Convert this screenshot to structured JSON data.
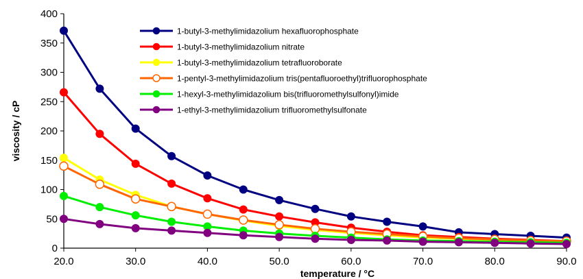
{
  "chart_data": {
    "type": "line",
    "xlabel": "temperature / °C",
    "ylabel": "viscosity / cP",
    "xlim": [
      20,
      90
    ],
    "ylim": [
      0,
      400
    ],
    "x_ticks": [
      "20.0",
      "30.0",
      "40.0",
      "50.0",
      "60.0",
      "70.0",
      "80.0",
      "90.0"
    ],
    "y_ticks": [
      "0",
      "50",
      "100",
      "150",
      "200",
      "250",
      "300",
      "350",
      "400"
    ],
    "grid": false,
    "legend_position": "top-right",
    "x": [
      20,
      25,
      30,
      35,
      40,
      45,
      50,
      55,
      60,
      65,
      70,
      75,
      80,
      85,
      90
    ],
    "series": [
      {
        "name": "1-butyl-3-methylimidazolium hexafluorophosphate",
        "color": "#000080",
        "marker": "filled-circle",
        "values": [
          371,
          272,
          204,
          157,
          124,
          100,
          82,
          67,
          54,
          45,
          37,
          27,
          24,
          21,
          18
        ]
      },
      {
        "name": "1-butyl-3-methylimidazolium nitrate",
        "color": "#ff0000",
        "marker": "filled-circle",
        "values": [
          266,
          195,
          144,
          110,
          85,
          66,
          54,
          44,
          35,
          28,
          22,
          19,
          16,
          14,
          12
        ]
      },
      {
        "name": "1-butyl-3-methylimidazolium tetrafluoroborate",
        "color": "#ffff00",
        "marker": "filled-circle",
        "values": [
          154,
          117,
          91,
          71,
          58,
          47,
          38,
          31,
          26,
          22,
          18,
          16,
          14,
          12,
          10
        ]
      },
      {
        "name": "1-pentyl-3-methylimidazolium tris(pentafluoroethyl)trifluorophosphate",
        "color": "#ff6600",
        "marker": "open-circle",
        "values": [
          140,
          109,
          84,
          71,
          58,
          48,
          40,
          33,
          28,
          24,
          20,
          17,
          15,
          13,
          12
        ]
      },
      {
        "name": "1-hexyl-3-methylimidazolium bis(trifluoromethylsulfonyl)imide",
        "color": "#00ee00",
        "marker": "filled-circle",
        "values": [
          89,
          70,
          56,
          45,
          37,
          30,
          25,
          21,
          18,
          15,
          13,
          12,
          11,
          10,
          9
        ]
      },
      {
        "name": "1-ethyl-3-methylimidazolium trifluoromethylsulfonate",
        "color": "#800080",
        "marker": "filled-circle",
        "values": [
          50,
          41,
          34,
          30,
          26,
          22,
          19,
          16,
          14,
          13,
          11,
          10,
          9,
          8,
          7
        ]
      }
    ]
  }
}
